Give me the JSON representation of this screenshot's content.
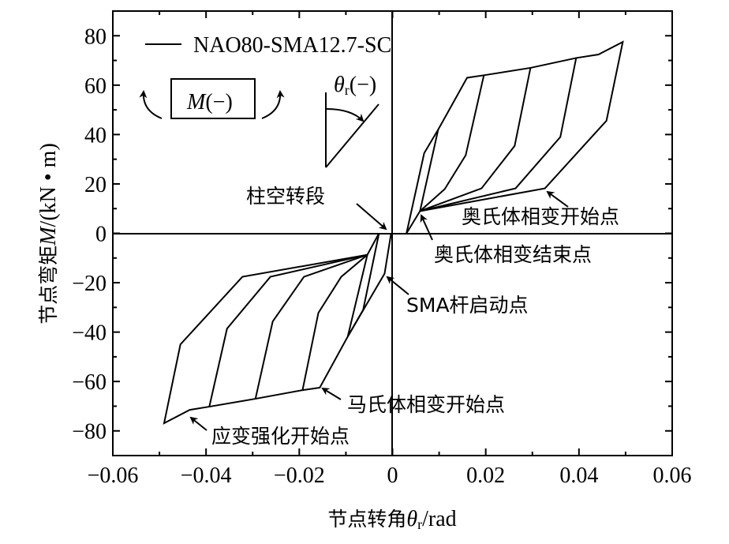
{
  "chart_data": {
    "type": "line",
    "title": "",
    "xlabel_prefix": "节点转角",
    "xlabel_symbol": "θ",
    "xlabel_sub": "r",
    "xlabel_unit": "/rad",
    "ylabel_prefix": "节点弯矩",
    "ylabel_symbol": "M",
    "ylabel_unit": "/(kN • m)",
    "xlim": [
      -0.06,
      0.06
    ],
    "ylim": [
      -90,
      90
    ],
    "x_ticks": [
      -0.06,
      -0.04,
      -0.02,
      0,
      0.02,
      0.04,
      0.06
    ],
    "x_tick_labels": [
      "−0.06",
      "−0.04",
      "−0.02",
      "0",
      "0.02",
      "0.04",
      "0.06"
    ],
    "y_ticks": [
      80,
      60,
      40,
      20,
      0,
      -20,
      -40,
      -60,
      -80
    ],
    "y_tick_labels": [
      "80",
      "60",
      "40",
      "20",
      "0",
      "−20",
      "−40",
      "−60",
      "−80"
    ],
    "legend": {
      "label": "NAO80-SMA12.7-SC",
      "placement": "top-left"
    },
    "inset": {
      "moment_label": "M",
      "moment_sign": "(−)",
      "rotation_symbol": "θ",
      "rotation_sub": "r",
      "rotation_sign": "(−)"
    },
    "series": [
      {
        "name": "NAO80-SMA12.7-SC",
        "segments": [
          [
            [
              0.003,
              0
            ],
            [
              0.0068,
              32.5
            ],
            [
              0.0098,
              42
            ],
            [
              0.016,
              63
            ],
            [
              0.0196,
              64
            ],
            [
              0.0296,
              67
            ],
            [
              0.0394,
              71
            ],
            [
              0.0442,
              72.4
            ],
            [
              0.0494,
              77.5
            ],
            [
              0.0459,
              45.6
            ],
            [
              0.0327,
              18.2
            ],
            [
              0.0059,
              9
            ],
            [
              0.003,
              0
            ]
          ],
          [
            [
              0.0196,
              64
            ],
            [
              0.0157,
              31.6
            ],
            [
              0.0112,
              17.9
            ],
            [
              0.0059,
              9
            ]
          ],
          [
            [
              0.0296,
              67
            ],
            [
              0.0262,
              35.4
            ],
            [
              0.0191,
              18.2
            ],
            [
              0.0059,
              9
            ]
          ],
          [
            [
              0.0394,
              71
            ],
            [
              0.036,
              39
            ],
            [
              0.0264,
              18.2
            ],
            [
              0.0059,
              9
            ]
          ],
          [
            [
              0.0059,
              9
            ],
            [
              0.0098,
              42
            ]
          ],
          [
            [
              -0.0003,
              0
            ],
            [
              -0.0017,
              -16.3
            ],
            [
              -0.0096,
              -41.8
            ],
            [
              -0.0156,
              -62.5
            ],
            [
              -0.0193,
              -63.5
            ],
            [
              -0.0294,
              -67
            ],
            [
              -0.0393,
              -70.2
            ],
            [
              -0.0435,
              -71.5
            ],
            [
              -0.049,
              -76.9
            ],
            [
              -0.0455,
              -45
            ],
            [
              -0.0322,
              -17.6
            ],
            [
              -0.0054,
              -8.7
            ],
            [
              -0.0029,
              0
            ]
          ],
          [
            [
              -0.0393,
              -70.2
            ],
            [
              -0.0355,
              -38.6
            ],
            [
              -0.0262,
              -17.6
            ],
            [
              -0.0054,
              -8.7
            ]
          ],
          [
            [
              -0.0294,
              -67
            ],
            [
              -0.0257,
              -35.7
            ],
            [
              -0.019,
              -17.6
            ],
            [
              -0.0054,
              -8.7
            ]
          ],
          [
            [
              -0.0193,
              -63.5
            ],
            [
              -0.0159,
              -32.2
            ],
            [
              -0.011,
              -17.6
            ],
            [
              -0.0054,
              -8.7
            ]
          ],
          [
            [
              -0.0096,
              -41.8
            ],
            [
              -0.0063,
              -31
            ],
            [
              -0.0029,
              0
            ]
          ],
          [
            [
              -0.0054,
              -8.7
            ],
            [
              -0.0096,
              -41.8
            ]
          ]
        ]
      }
    ],
    "annotations": [
      {
        "text": "柱空转段",
        "target": [
          -0.0005,
          0
        ]
      },
      {
        "text": "奥氏体相变开始点",
        "target": [
          0.0327,
          18.2
        ]
      },
      {
        "text": "奥氏体相变结束点",
        "target": [
          0.0059,
          9
        ]
      },
      {
        "text": "SMA杆启动点",
        "target": [
          -0.0017,
          -16.3
        ]
      },
      {
        "text": "马氏体相变开始点",
        "target": [
          -0.0156,
          -62.5
        ]
      },
      {
        "text": "应变强化开始点",
        "target": [
          -0.0435,
          -71.5
        ]
      }
    ]
  }
}
